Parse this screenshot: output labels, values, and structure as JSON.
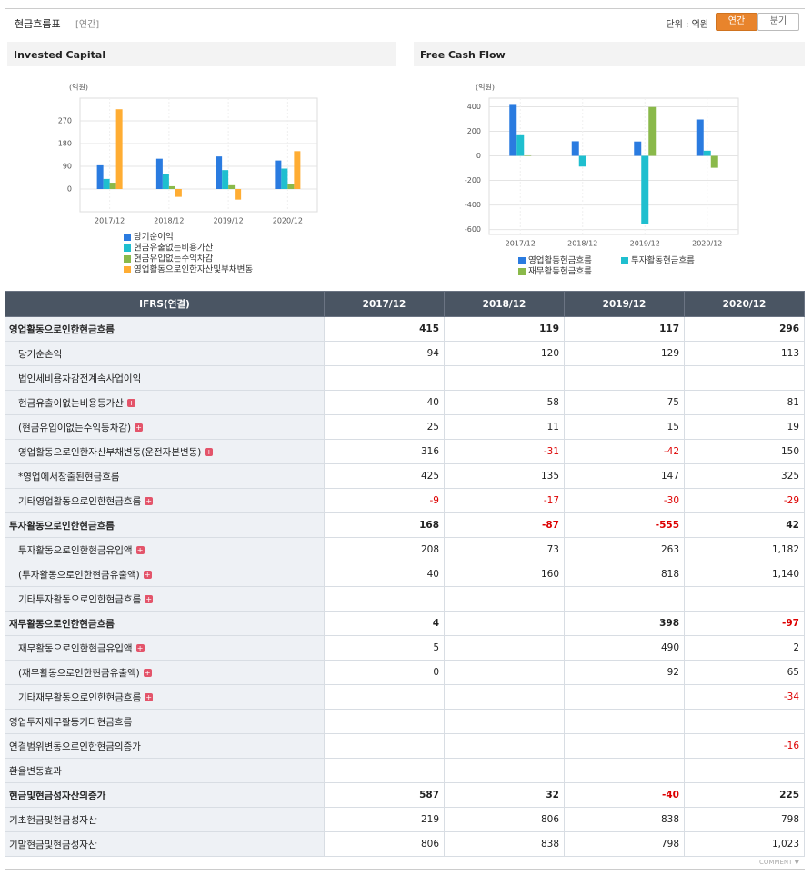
{
  "header": {
    "title": "현금흐름표",
    "tag": "[연간]",
    "unit": "단위 : 억원",
    "tabs": [
      "연간",
      "분기"
    ]
  },
  "chart_data": [
    {
      "type": "bar",
      "title": "Invested Capital",
      "unit": "(억원)",
      "categories": [
        "2017/12",
        "2018/12",
        "2019/12",
        "2020/12"
      ],
      "series": [
        {
          "name": "당기순이익",
          "color": "#2a7be0",
          "values": [
            94,
            120,
            129,
            113
          ]
        },
        {
          "name": "현금유출없는비용가산",
          "color": "#1fbfcf",
          "values": [
            40,
            58,
            75,
            81
          ]
        },
        {
          "name": "현금유입없는수익차감",
          "color": "#8ab94a",
          "values": [
            25,
            11,
            15,
            19
          ]
        },
        {
          "name": "영업활동으로인한자산및부채변동",
          "color": "#ffad33",
          "values": [
            316,
            -31,
            -42,
            150
          ]
        }
      ],
      "ylim": [
        -90,
        360
      ],
      "yticks": [
        0,
        90,
        180,
        270
      ],
      "grid": true
    },
    {
      "type": "bar",
      "title": "Free Cash Flow",
      "unit": "(억원)",
      "categories": [
        "2017/12",
        "2018/12",
        "2019/12",
        "2020/12"
      ],
      "series": [
        {
          "name": "영업활동현금흐름",
          "color": "#2a7be0",
          "values": [
            415,
            119,
            117,
            296
          ]
        },
        {
          "name": "투자활동현금흐름",
          "color": "#1fbfcf",
          "values": [
            168,
            -87,
            -555,
            42
          ]
        },
        {
          "name": "재무활동현금흐름",
          "color": "#8ab94a",
          "values": [
            4,
            null,
            398,
            -97
          ]
        }
      ],
      "ylim": [
        -640,
        470
      ],
      "yticks": [
        -600,
        -400,
        -200,
        0,
        200,
        400
      ],
      "grid": true
    }
  ],
  "table": {
    "columns": [
      "IFRS(연결)",
      "2017/12",
      "2018/12",
      "2019/12",
      "2020/12"
    ],
    "rows": [
      [
        "영업활동으로인한현금흐름",
        "415",
        "119",
        "117",
        "296"
      ],
      [
        "당기순손익",
        "94",
        "120",
        "129",
        "113"
      ],
      [
        "법인세비용차감전계속사업이익",
        null,
        null,
        null,
        null
      ],
      [
        "현금유출이없는비용등가산",
        "40",
        "58",
        "75",
        "81"
      ],
      [
        "(현금유입이없는수익등차감)",
        "25",
        "11",
        "15",
        "19"
      ],
      [
        "영업활동으로인한자산부채변동(운전자본변동)",
        "316",
        "-31",
        "-42",
        "150"
      ],
      [
        "*영업에서창출된현금흐름",
        "425",
        "135",
        "147",
        "325"
      ],
      [
        "기타영업활동으로인한현금흐름",
        "-9",
        "-17",
        "-30",
        "-29"
      ],
      [
        "투자활동으로인한현금흐름",
        "168",
        "-87",
        "-555",
        "42"
      ],
      [
        "투자활동으로인한현금유입액",
        "208",
        "73",
        "263",
        "1,182"
      ],
      [
        "(투자활동으로인한현금유출액)",
        "40",
        "160",
        "818",
        "1,140"
      ],
      [
        "기타투자활동으로인한현금흐름",
        null,
        null,
        null,
        null
      ],
      [
        "재무활동으로인한현금흐름",
        "4",
        null,
        "398",
        "-97"
      ],
      [
        "재무활동으로인한현금유입액",
        "5",
        null,
        "490",
        "2"
      ],
      [
        "(재무활동으로인한현금유출액)",
        "0",
        null,
        "92",
        "65"
      ],
      [
        "기타재무활동으로인한현금흐름",
        null,
        null,
        null,
        "-34"
      ],
      [
        "영업투자재무활동기타현금흐름",
        null,
        null,
        null,
        null
      ],
      [
        "연결범위변동으로인한현금의증가",
        null,
        null,
        null,
        "-16"
      ],
      [
        "환율변동효과",
        null,
        null,
        null,
        null
      ],
      [
        "현금및현금성자산의증가",
        "587",
        "32",
        "-40",
        "225"
      ],
      [
        "기초현금및현금성자산",
        "219",
        "806",
        "838",
        "798"
      ],
      [
        "기말현금및현금성자산",
        "806",
        "838",
        "798",
        "1,023"
      ]
    ]
  },
  "footer": "COMMENT ▼"
}
